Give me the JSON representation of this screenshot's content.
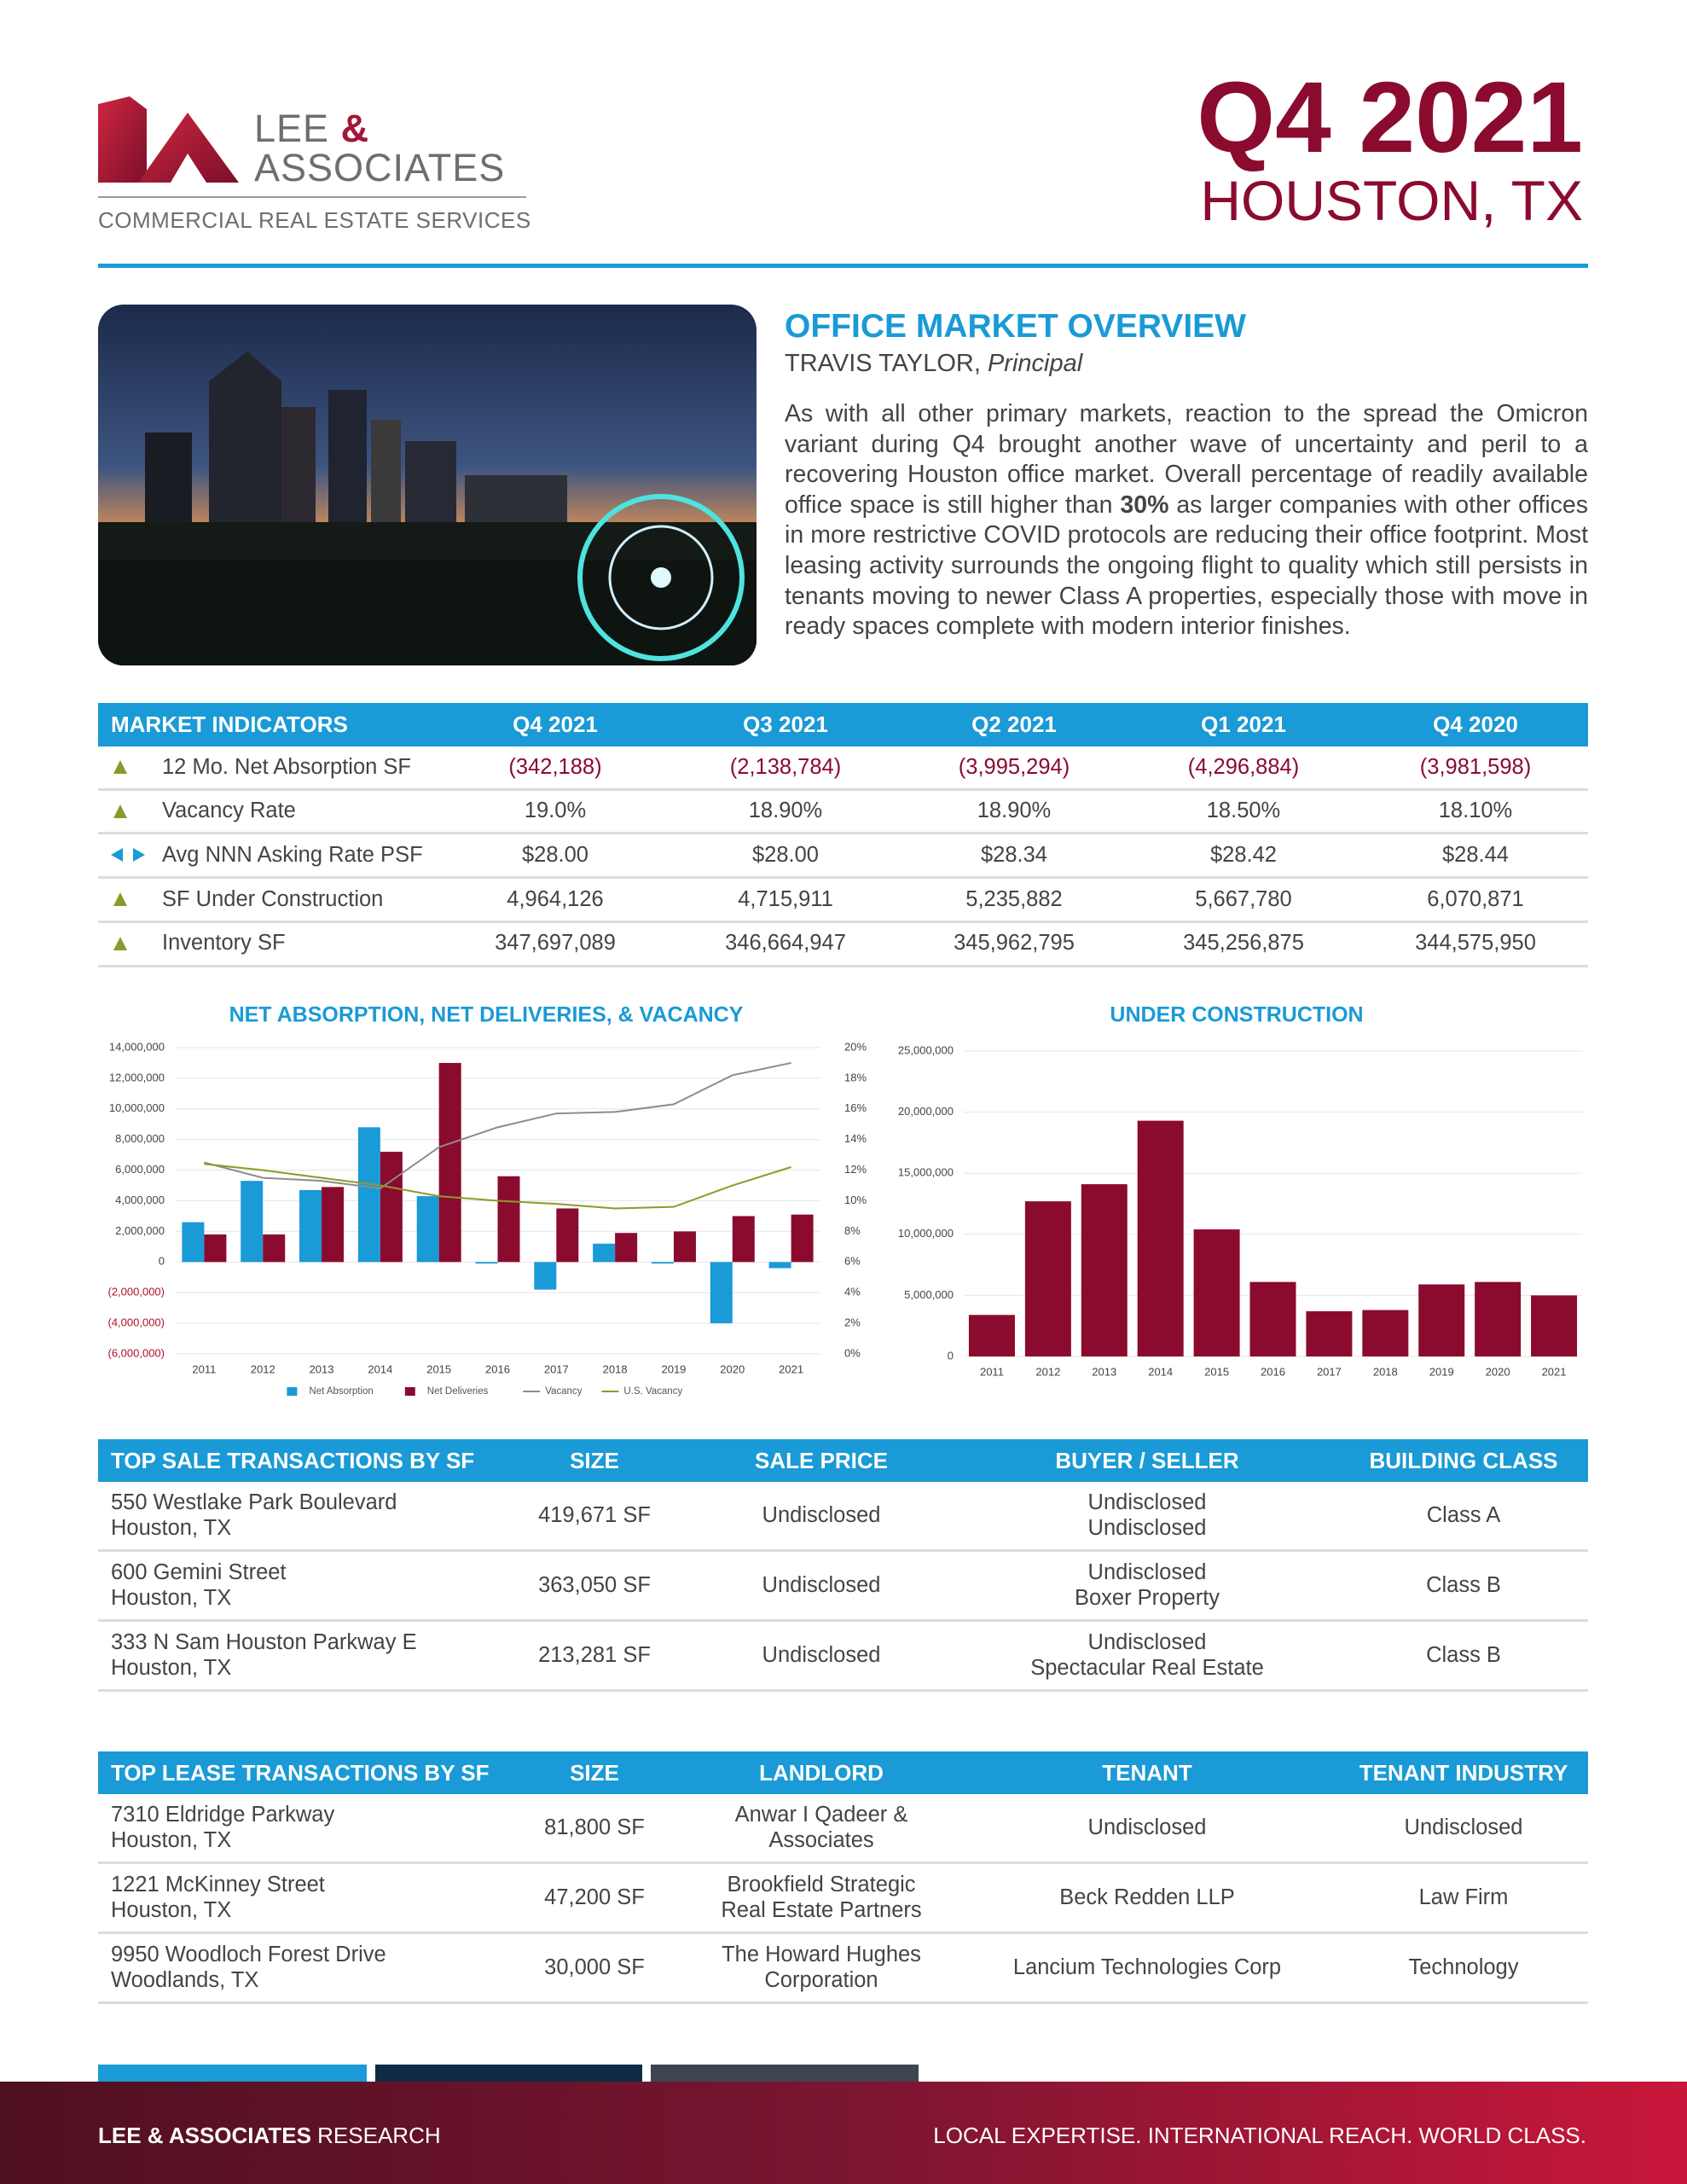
{
  "header": {
    "logo_lee": "LEE",
    "logo_amp": "&",
    "logo_associates": "ASSOCIATES",
    "tagline": "COMMERCIAL REAL ESTATE SERVICES",
    "quarter": "Q4 2021",
    "location": "HOUSTON, TX"
  },
  "overview": {
    "title": "OFFICE MARKET OVERVIEW",
    "author": "TRAVIS TAYLOR,",
    "role": "Principal",
    "body": [
      "As with all other primary markets, reaction to the spread the Omicron variant during Q4 brought another wave of uncertainty and peril to a recovering Houston office market. Overall percentage of readily available office space is still higher than ",
      "30%",
      " as larger companies with other offices in more restrictive COVID protocols are reducing their office footprint. Most leasing activity surrounds the ongoing flight to quality which still persists in tenants moving to newer Class A properties, especially those with move in ready spaces complete with modern interior finishes."
    ]
  },
  "indicators": {
    "columns": [
      "MARKET INDICATORS",
      "Q4 2021",
      "Q3 2021",
      "Q2 2021",
      "Q1 2021",
      "Q4 2020"
    ],
    "rows": [
      [
        "12 Mo. Net Absorption SF",
        "(342,188)",
        "(2,138,784)",
        "(3,995,294)",
        "(4,296,884)",
        "(3,981,598)"
      ],
      [
        "Vacancy Rate",
        "19.0%",
        "18.90%",
        "18.90%",
        "18.50%",
        "18.10%"
      ],
      [
        "Avg NNN Asking Rate PSF",
        "$28.00",
        "$28.00",
        "$28.34",
        "$28.42",
        "$28.44"
      ],
      [
        "SF Under Construction",
        "4,964,126",
        "4,715,911",
        "5,235,882",
        "5,667,780",
        "6,070,871"
      ],
      [
        "Inventory SF",
        "347,697,089",
        "346,664,947",
        "345,962,795",
        "345,256,875",
        "344,575,950"
      ]
    ]
  },
  "chart_data": [
    {
      "type": "bar",
      "title": "NET ABSORPTION, NET DELIVERIES, & VACANCY",
      "categories": [
        "2011",
        "2012",
        "2013",
        "2014",
        "2015",
        "2016",
        "2017",
        "2018",
        "2019",
        "2020",
        "2021"
      ],
      "series": [
        {
          "name": "Net Absorption",
          "type": "bar",
          "color": "#1a9ad6",
          "values": [
            2600000,
            5300000,
            4700000,
            8800000,
            4300000,
            -100000,
            -1800000,
            1200000,
            -100000,
            -4000000,
            -400000
          ]
        },
        {
          "name": "Net Deliveries",
          "type": "bar",
          "color": "#8b0b2e",
          "values": [
            1800000,
            1800000,
            4900000,
            7200000,
            13000000,
            5600000,
            3500000,
            1900000,
            2000000,
            3000000,
            3100000
          ]
        },
        {
          "name": "Vacancy",
          "type": "line",
          "axis": "y2",
          "color": "#8c8c8c",
          "values": [
            12.5,
            11.5,
            11.3,
            10.8,
            13.5,
            14.8,
            15.7,
            15.8,
            16.3,
            18.2,
            19.0
          ]
        },
        {
          "name": "U.S. Vacancy",
          "type": "line",
          "axis": "y2",
          "color": "#8f9a2a",
          "values": [
            12.4,
            12.0,
            11.5,
            11.0,
            10.3,
            10.0,
            9.8,
            9.5,
            9.6,
            11.0,
            12.2
          ]
        }
      ],
      "ylim": [
        -6000000,
        14000000
      ],
      "yticks": [
        {
          "value": -6000000,
          "label": "(6,000,000)"
        },
        {
          "value": -4000000,
          "label": "(4,000,000)"
        },
        {
          "value": -2000000,
          "label": "(2,000,000)"
        },
        0,
        {
          "value": 2000000,
          "label": "2,000,000"
        },
        {
          "value": 4000000,
          "label": "4,000,000"
        },
        {
          "value": 6000000,
          "label": "6,000,000"
        },
        {
          "value": 8000000,
          "label": "8,000,000"
        },
        {
          "value": 10000000,
          "label": "10,000,000"
        },
        {
          "value": 12000000,
          "label": "12,000,000"
        },
        {
          "value": 14000000,
          "label": "14,000,000"
        }
      ],
      "y2lim": [
        0,
        20
      ],
      "y2ticks": [
        {
          "value": 0,
          "label": "0%"
        },
        {
          "value": 2,
          "label": "2%"
        },
        {
          "value": 4,
          "label": "4%"
        },
        {
          "value": 6,
          "label": "6%"
        },
        {
          "value": 8,
          "label": "8%"
        },
        {
          "value": 10,
          "label": "10%"
        },
        {
          "value": 12,
          "label": "12%"
        },
        {
          "value": 14,
          "label": "14%"
        },
        {
          "value": 16,
          "label": "16%"
        },
        {
          "value": 18,
          "label": "18%"
        },
        {
          "value": 20,
          "label": "20%"
        }
      ],
      "grid": true,
      "legend": "bottom"
    },
    {
      "type": "bar",
      "title": "UNDER CONSTRUCTION",
      "categories": [
        "2011",
        "2012",
        "2013",
        "2014",
        "2015",
        "2016",
        "2017",
        "2018",
        "2019",
        "2020",
        "2021"
      ],
      "values": [
        3400000,
        12700000,
        14100000,
        19300000,
        10400000,
        6100000,
        3700000,
        3800000,
        5900000,
        6100000,
        5000000
      ],
      "color": "#8b0b2e",
      "ylim": [
        0,
        25000000
      ],
      "yticks": [
        0,
        {
          "value": 5000000,
          "label": "5,000,000"
        },
        {
          "value": 10000000,
          "label": "10,000,000"
        },
        {
          "value": 15000000,
          "label": "15,000,000"
        },
        {
          "value": 20000000,
          "label": "20,000,000"
        },
        {
          "value": 25000000,
          "label": "25,000,000"
        }
      ],
      "grid": true
    }
  ],
  "sales": {
    "columns": [
      "TOP SALE TRANSACTIONS BY SF",
      "SIZE",
      "SALE PRICE",
      "BUYER / SELLER",
      "BUILDING CLASS"
    ],
    "rows": [
      [
        [
          "550 Westlake Park Boulevard",
          "Houston, TX"
        ],
        [
          "419,671 SF"
        ],
        [
          "Undisclosed"
        ],
        [
          "Undisclosed",
          "Undisclosed"
        ],
        [
          "Class A"
        ]
      ],
      [
        [
          "600 Gemini Street",
          "Houston, TX"
        ],
        [
          "363,050 SF"
        ],
        [
          "Undisclosed"
        ],
        [
          "Undisclosed",
          "Boxer Property"
        ],
        [
          "Class B"
        ]
      ],
      [
        [
          "333 N Sam Houston Parkway E",
          "Houston, TX"
        ],
        [
          "213,281 SF"
        ],
        [
          "Undisclosed"
        ],
        [
          "Undisclosed",
          "Spectacular Real Estate"
        ],
        [
          "Class B"
        ]
      ]
    ]
  },
  "leases": {
    "columns": [
      "TOP LEASE TRANSACTIONS BY SF",
      "SIZE",
      "LANDLORD",
      "TENANT",
      "TENANT INDUSTRY"
    ],
    "rows": [
      [
        [
          "7310 Eldridge Parkway",
          "Houston, TX"
        ],
        [
          "81,800 SF"
        ],
        [
          "Anwar I Qadeer &",
          "Associates"
        ],
        [
          "Undisclosed"
        ],
        [
          "Undisclosed"
        ]
      ],
      [
        [
          "1221 McKinney Street",
          "Houston, TX"
        ],
        [
          "47,200 SF"
        ],
        [
          "Brookfield Strategic",
          "Real Estate Partners"
        ],
        [
          "Beck Redden LLP"
        ],
        [
          "Law Firm"
        ]
      ],
      [
        [
          "9950 Woodloch Forest Drive",
          "Woodlands, TX"
        ],
        [
          "30,000 SF"
        ],
        [
          "The Howard Hughes",
          "Corporation"
        ],
        [
          "Lancium Technologies Corp"
        ],
        [
          "Technology"
        ]
      ]
    ]
  },
  "footer": {
    "brand": "LEE & ASSOCIATES",
    "label": "RESEARCH",
    "slogan": "LOCAL EXPERTISE. INTERNATIONAL REACH. WORLD CLASS."
  }
}
